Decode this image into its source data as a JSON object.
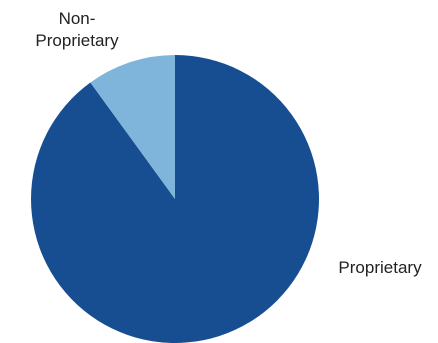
{
  "chart_data": {
    "type": "pie",
    "title": "",
    "slices": [
      {
        "label": "Proprietary",
        "value": 90,
        "color": "#164E91"
      },
      {
        "label": "Non-Proprietary",
        "value": 10,
        "color": "#7FB5DA"
      }
    ],
    "label_lines": {
      "Proprietary": [
        "Proprietary"
      ],
      "Non-Proprietary": [
        "Non-",
        "Proprietary"
      ]
    },
    "start_angle_deg": 0,
    "direction": "clockwise",
    "legend": "none"
  }
}
